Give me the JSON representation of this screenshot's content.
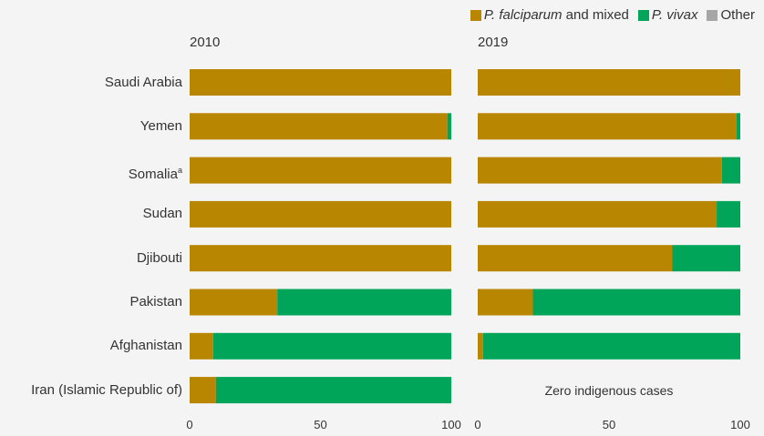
{
  "legend": [
    {
      "name_italic": "P. falciparum",
      "name_rest": " and mixed",
      "color": "#b88600"
    },
    {
      "name_italic": "P. vivax",
      "name_rest": "",
      "color": "#00a55a"
    },
    {
      "name_italic": "",
      "name_rest": "Other",
      "color": "#a6a6a6"
    }
  ],
  "chart_data": [
    {
      "type": "bar",
      "title": "2010",
      "categories": [
        "Saudi Arabia",
        "Yemen",
        "Somalia",
        "Sudan",
        "Djibouti",
        "Pakistan",
        "Afghanistan",
        "Iran (Islamic Republic of)"
      ],
      "xlim": [
        0,
        100
      ],
      "xticks": [
        "0",
        "50",
        "100"
      ],
      "series": [
        {
          "name": "P. falciparum and mixed",
          "color": "#b88600",
          "values": [
            100,
            98.5,
            100,
            100,
            100,
            33.5,
            9,
            10
          ]
        },
        {
          "name": "P. vivax",
          "color": "#00a55a",
          "values": [
            0,
            1.5,
            0,
            0,
            0,
            66.5,
            91,
            90
          ]
        },
        {
          "name": "Other",
          "color": "#a6a6a6",
          "values": [
            0,
            0,
            0,
            0,
            0,
            0,
            0,
            0
          ]
        }
      ]
    },
    {
      "type": "bar",
      "title": "2019",
      "categories": [
        "Saudi Arabia",
        "Yemen",
        "Somalia",
        "Sudan",
        "Djibouti",
        "Pakistan",
        "Afghanistan",
        "Iran (Islamic Republic of)"
      ],
      "xlim": [
        0,
        100
      ],
      "xticks": [
        "0",
        "50",
        "100"
      ],
      "series": [
        {
          "name": "P. falciparum and mixed",
          "color": "#b88600",
          "values": [
            100,
            98.5,
            93,
            91,
            74,
            21,
            2,
            null
          ]
        },
        {
          "name": "P. vivax",
          "color": "#00a55a",
          "values": [
            0,
            1.5,
            7,
            9,
            26,
            79,
            98,
            null
          ]
        },
        {
          "name": "Other",
          "color": "#a6a6a6",
          "values": [
            0,
            0,
            0,
            0,
            0,
            0,
            0,
            null
          ]
        }
      ],
      "annotations": [
        {
          "category": "Iran (Islamic Republic of)",
          "text": "Zero indigenous cases"
        }
      ]
    }
  ],
  "labels": {
    "somalia_footnote": "a"
  }
}
